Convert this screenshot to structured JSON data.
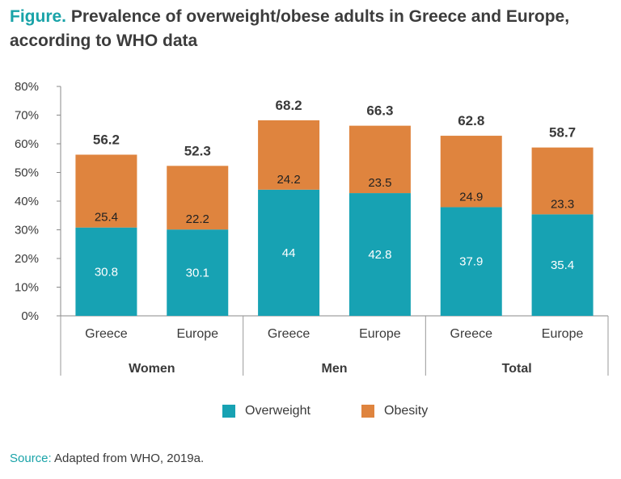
{
  "figure_label": "Figure.",
  "title": "Prevalence of overweight/obese adults in Greece and Europe, according to WHO data",
  "source_label": "Source:",
  "source_text": "Adapted from WHO, 2019a.",
  "colors": {
    "overweight": "#17a2b3",
    "obesity": "#df843e",
    "accent": "#19a3a8"
  },
  "chart_data": {
    "type": "bar",
    "stacked": true,
    "title": "Prevalence of overweight/obese adults in Greece and Europe, according to WHO data",
    "ylabel": "",
    "xlabel": "",
    "ylim": [
      0,
      80
    ],
    "y_ticks": [
      0,
      10,
      20,
      30,
      40,
      50,
      60,
      70,
      80
    ],
    "y_tick_format": "%",
    "grid": false,
    "legend_position": "bottom",
    "groups": [
      "Women",
      "Men",
      "Total"
    ],
    "categories": [
      "Greece",
      "Europe",
      "Greece",
      "Europe",
      "Greece",
      "Europe"
    ],
    "series": [
      {
        "name": "Overweight",
        "values": [
          30.8,
          30.1,
          44,
          42.8,
          37.9,
          35.4
        ]
      },
      {
        "name": "Obesity",
        "values": [
          25.4,
          22.2,
          24.2,
          23.5,
          24.9,
          23.3
        ]
      }
    ],
    "totals": [
      "56.2",
      "52.3",
      "68.2",
      "66.3",
      "62.8",
      "58.7"
    ],
    "segment_labels": {
      "Overweight": [
        "30.8",
        "30.1",
        "44",
        "42.8",
        "37.9",
        "35.4"
      ],
      "Obesity": [
        "25.4",
        "22.2",
        "24.2",
        "23.5",
        "24.9",
        "23.3"
      ]
    }
  }
}
